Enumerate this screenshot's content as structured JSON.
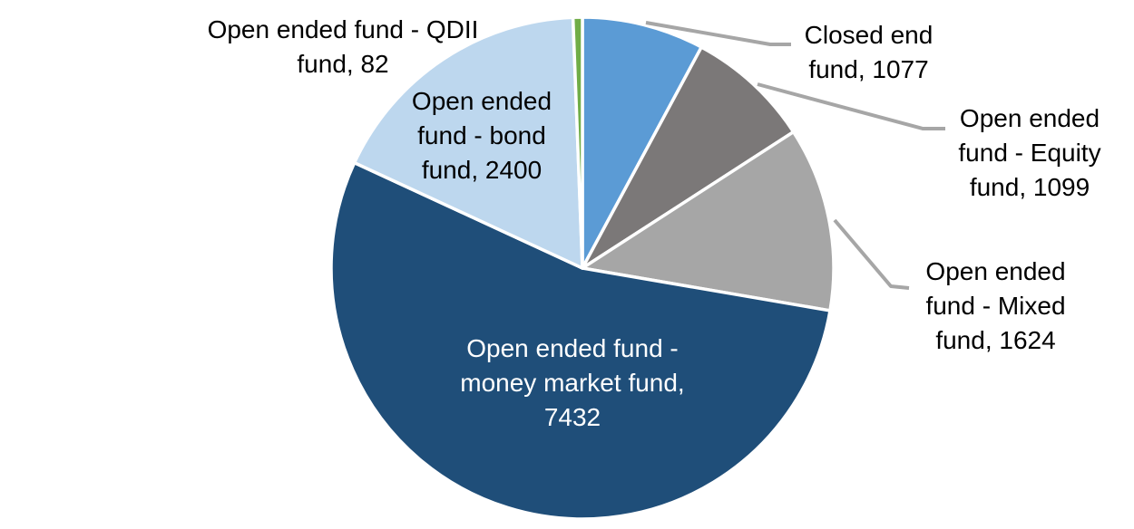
{
  "chart_data": {
    "type": "pie",
    "title": "",
    "legend_position": "none",
    "grid": false,
    "start_angle_deg": 0,
    "direction": "clockwise",
    "total": 13714,
    "slices": [
      {
        "name": "Closed end fund",
        "value": 1077,
        "color": "#5B9BD5"
      },
      {
        "name": "Open ended fund - Equity fund",
        "value": 1099,
        "color": "#7B7878"
      },
      {
        "name": "Open ended fund - Mixed fund",
        "value": 1624,
        "color": "#A6A6A6"
      },
      {
        "name": "Open ended fund - money market fund",
        "value": 7432,
        "color": "#1F4E79"
      },
      {
        "name": "Open ended fund - bond fund",
        "value": 2400,
        "color": "#BDD7EE"
      },
      {
        "name": "Open ended fund - QDII fund",
        "value": 82,
        "color": "#70AD47"
      }
    ]
  },
  "labels": {
    "qdii": "Open ended fund - QDII\nfund, 82",
    "closed": "Closed end\nfund, 1077",
    "equity": "Open ended\nfund - Equity\nfund, 1099",
    "mixed": "Open ended\nfund - Mixed\nfund, 1624",
    "bond": "Open ended\nfund - bond\nfund, 2400",
    "money": "Open ended fund -\nmoney market fund,\n7432"
  },
  "colors": {
    "background": "#FFFFFF",
    "slice_border": "#FFFFFF",
    "leader_line": "#A6A6A6",
    "label_text": "#000000",
    "inner_label_text": "#FFFFFF"
  }
}
